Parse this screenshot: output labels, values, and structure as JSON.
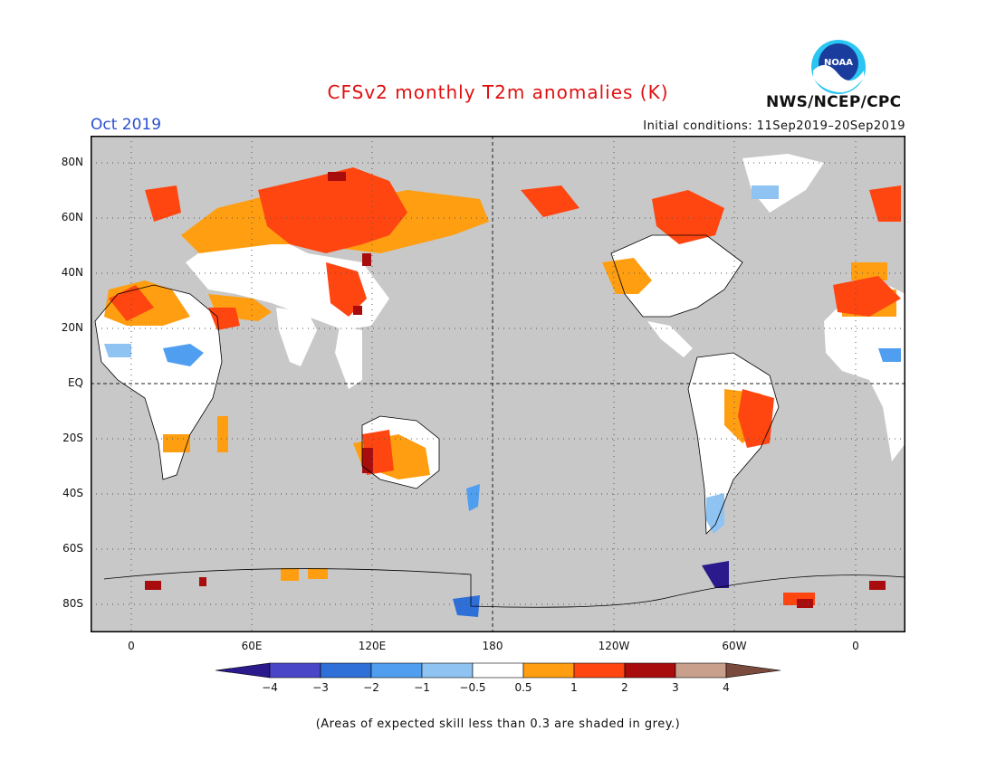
{
  "header": {
    "title": "CFSv2 monthly T2m anomalies (K)",
    "month": "Oct 2019",
    "initial_conditions": "Initial conditions: 11Sep2019–20Sep2019",
    "agency": "NWS/NCEP/CPC",
    "logo_text": "NOAA"
  },
  "map": {
    "background_color": "#c8c8c8",
    "lat_labels": [
      "80N",
      "60N",
      "40N",
      "20N",
      "EQ",
      "20S",
      "40S",
      "60S",
      "80S"
    ],
    "lon_labels": [
      "0",
      "60E",
      "120E",
      "180",
      "120W",
      "60W",
      "0"
    ]
  },
  "colorbar": {
    "colors": [
      "#2a1a8c",
      "#4a46c8",
      "#2f6fd8",
      "#4f9ef0",
      "#8ec3f2",
      "#ffffff",
      "#ff9e10",
      "#ff4510",
      "#a80c0c",
      "#c8a08c",
      "#7a4a3c"
    ],
    "labels": [
      "−4",
      "−3",
      "−2",
      "−1",
      "−0.5",
      "0.5",
      "1",
      "2",
      "3",
      "4"
    ]
  },
  "footnote": "(Areas of expected skill less than 0.3 are shaded in grey.)"
}
